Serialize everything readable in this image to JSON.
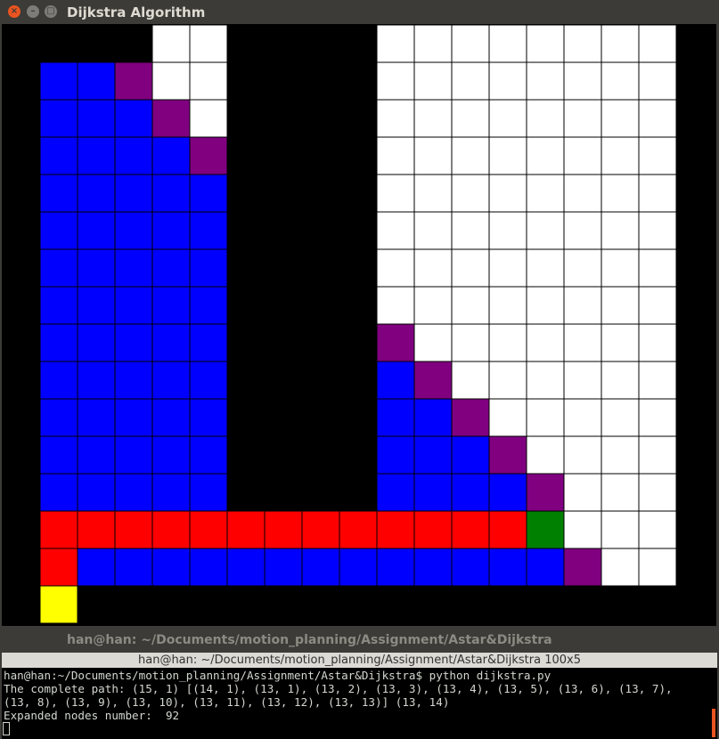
{
  "window": {
    "title": "Dijkstra Algorithm"
  },
  "terminal": {
    "title": "han@han: ~/Documents/motion_planning/Assignment/Astar&Dijkstra",
    "tab_title": "han@han: ~/Documents/motion_planning/Assignment/Astar&Dijkstra 100x5",
    "lines": [
      "han@han:~/Documents/motion_planning/Assignment/Astar&Dijkstra$ python dijkstra.py",
      "The complete path: (15, 1) [(14, 1), (13, 1), (13, 2), (13, 3), (13, 4), (13, 5), (13, 6), (13, 7),",
      "(13, 8), (13, 9), (13, 10), (13, 11), (13, 12), (13, 13)] (13, 14)",
      "Expanded nodes number:  92"
    ]
  }
}
